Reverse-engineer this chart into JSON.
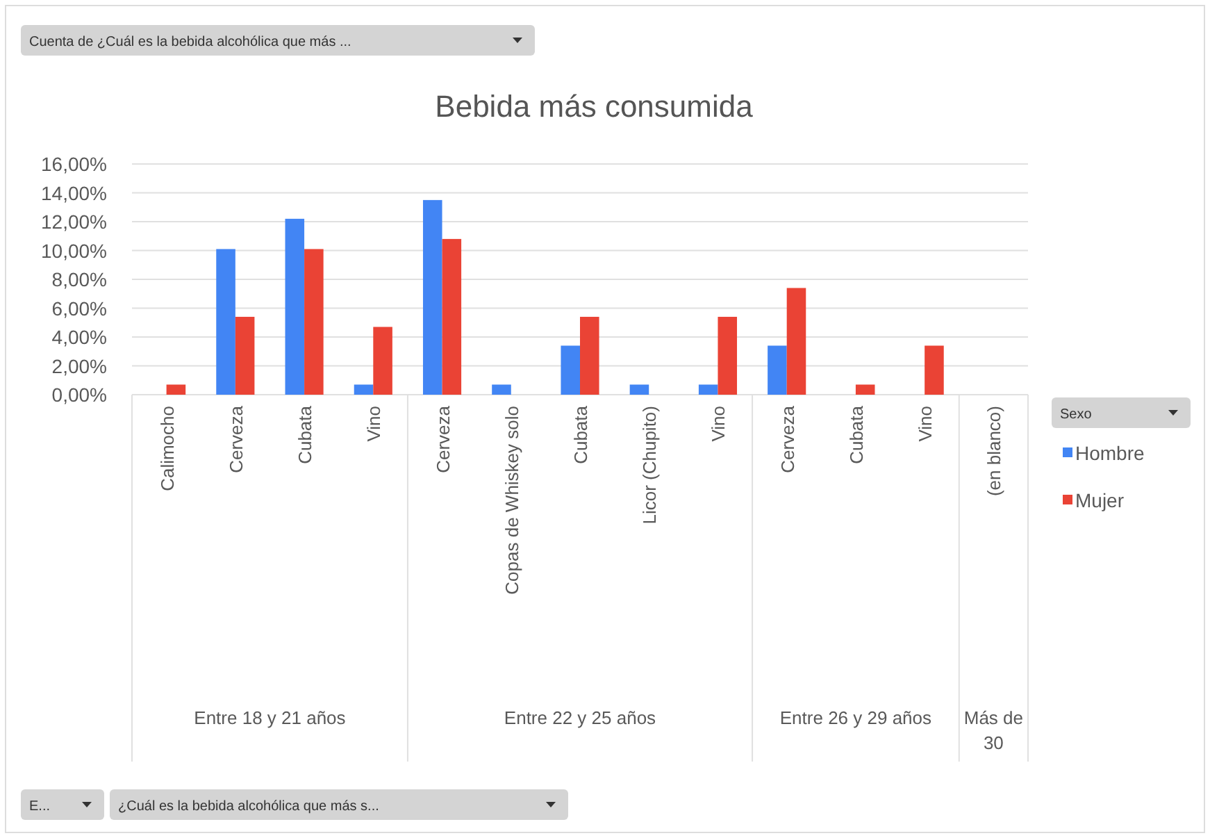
{
  "chart_data": {
    "type": "bar",
    "title": "Bebida más consumida",
    "legend_title": "Sexo",
    "categories": [
      "Calimocho",
      "Cerveza",
      "Cubata",
      "Vino",
      "Cerveza",
      "Copas de Whiskey solo",
      "Cubata",
      "Licor (Chupito)",
      "Vino",
      "Cerveza",
      "Cubata",
      "Vino",
      "(en blanco)"
    ],
    "series": [
      {
        "name": "Hombre",
        "color": "#4285f4",
        "values": [
          null,
          10.1,
          12.2,
          0.7,
          13.5,
          0.7,
          3.4,
          0.7,
          0.7,
          3.4,
          null,
          null,
          null
        ]
      },
      {
        "name": "Mujer",
        "color": "#ea4335",
        "values": [
          0.7,
          5.4,
          10.1,
          4.7,
          10.8,
          null,
          5.4,
          null,
          5.4,
          7.4,
          0.7,
          3.4,
          null
        ]
      }
    ],
    "ylim": [
      0,
      16
    ],
    "yticks": [
      {
        "value": 0,
        "label": "0,00%"
      },
      {
        "value": 2,
        "label": "2,00%"
      },
      {
        "value": 4,
        "label": "4,00%"
      },
      {
        "value": 6,
        "label": "6,00%"
      },
      {
        "value": 8,
        "label": "8,00%"
      },
      {
        "value": 10,
        "label": "10,00%"
      },
      {
        "value": 12,
        "label": "12,00%"
      },
      {
        "value": 14,
        "label": "14,00%"
      },
      {
        "value": 16,
        "label": "16,00%"
      }
    ],
    "grid": "y",
    "legend": "right",
    "annotations": [
      "Entre 18 y 21 años",
      "Entre 22 y 25 años",
      "Entre 26 y 29 años",
      "Más de 30",
      "Cuenta de ¿Cuál es la bebida alcohólica que más ...",
      "E...",
      "¿Cuál es la bebida alcohólica que más s..."
    ]
  }
}
